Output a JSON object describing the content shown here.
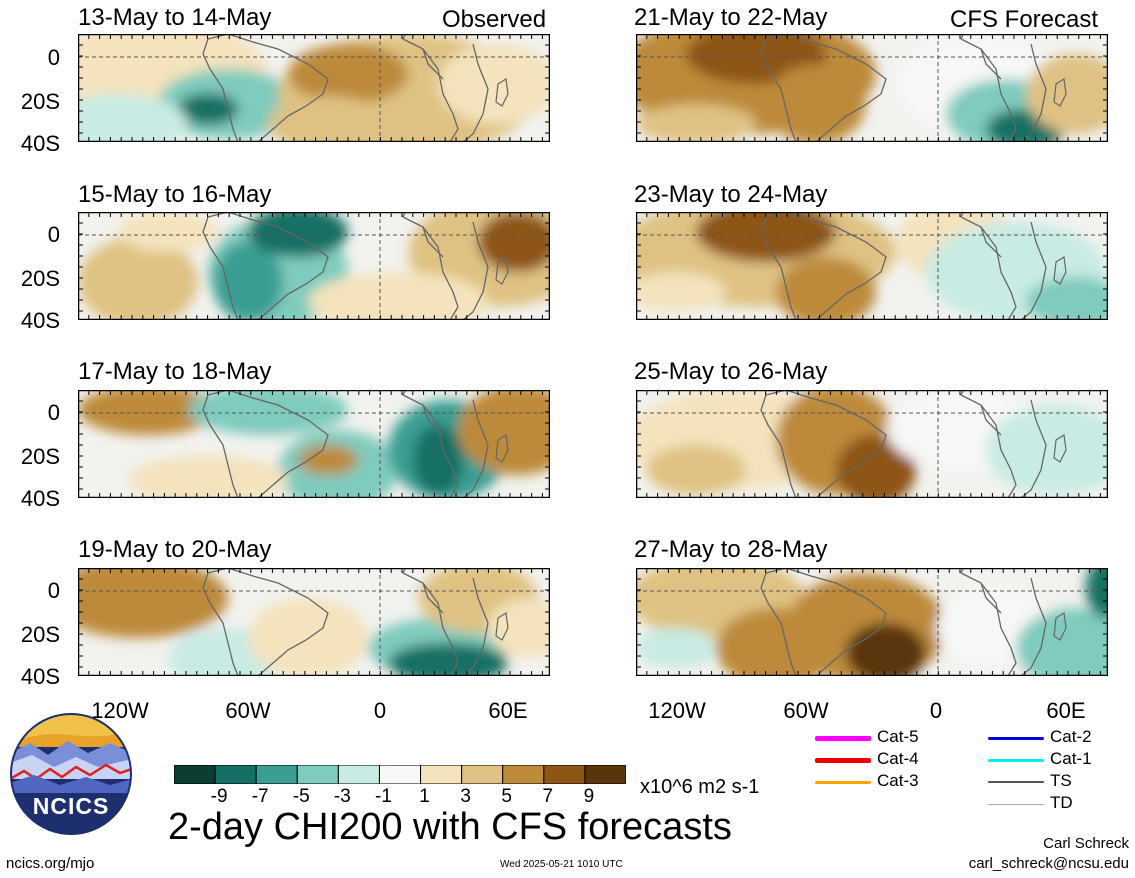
{
  "title": "2-day CHI200 with CFS forecasts",
  "observed_label": "Observed",
  "forecast_label": "CFS Forecast",
  "panels": [
    {
      "label": "13-May to 14-May",
      "kind": "obs"
    },
    {
      "label": "15-May to 16-May",
      "kind": "obs"
    },
    {
      "label": "17-May to 18-May",
      "kind": "obs"
    },
    {
      "label": "19-May to 20-May",
      "kind": "obs"
    },
    {
      "label": "21-May to 22-May",
      "kind": "fcst"
    },
    {
      "label": "23-May to 24-May",
      "kind": "fcst"
    },
    {
      "label": "25-May to 26-May",
      "kind": "fcst"
    },
    {
      "label": "27-May to 28-May",
      "kind": "fcst"
    }
  ],
  "lat_labels": [
    "0",
    "20S",
    "40S"
  ],
  "lon_labels": [
    "120W",
    "60W",
    "0",
    "60E"
  ],
  "colorbar": {
    "colors": [
      "#0b3d33",
      "#136f63",
      "#3a9e92",
      "#7fcbbd",
      "#c8ebe3",
      "#f7f7f7",
      "#f4e3bd",
      "#dfc283",
      "#bd8a3a",
      "#8d5516",
      "#5a340b"
    ],
    "tick_labels": [
      "-9",
      "-7",
      "-5",
      "-3",
      "-1",
      "1",
      "3",
      "5",
      "7",
      "9"
    ],
    "units": "x10^6 m2 s-1"
  },
  "storm_legend": [
    {
      "label": "Cat-5",
      "color": "#ff00ff"
    },
    {
      "label": "Cat-4",
      "color": "#ee0000"
    },
    {
      "label": "Cat-3",
      "color": "#ffa500"
    },
    {
      "label": "Cat-2",
      "color": "#0000dd"
    },
    {
      "label": "Cat-1",
      "color": "#00eeee"
    },
    {
      "label": "TS",
      "color": "#555555"
    },
    {
      "label": "TD",
      "color": "#aaaaaa"
    }
  ],
  "logo_text": "NCICS",
  "footer": {
    "url": "ncics.org/mjo",
    "timestamp": "Wed 2025-05-21 1010 UTC",
    "author": "Carl Schreck",
    "email": "carl_schreck@ncsu.edu"
  }
}
